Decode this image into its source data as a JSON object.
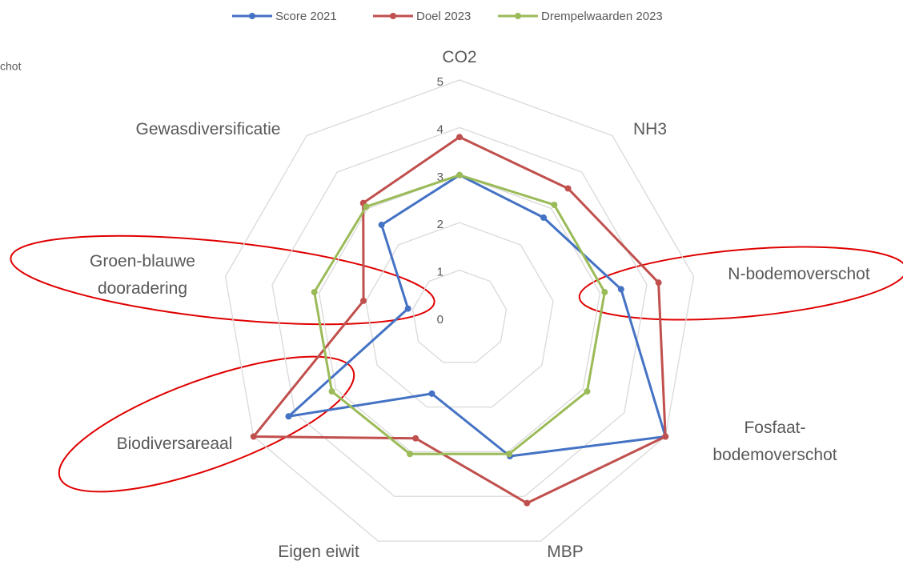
{
  "chart_data": {
    "type": "radar",
    "cropped_text": "chot",
    "categories": [
      "CO2",
      "NH3",
      "N-bodemoverschot",
      "Fosfaat-bodemoverschot",
      "MBP",
      "Eigen eiwit",
      "Biodiversareaal",
      "Groen-blauwe dooradering",
      "Gewasdiversificatie"
    ],
    "series": [
      {
        "name": "Score 2021",
        "color": "#4472c4",
        "values": [
          3.0,
          2.75,
          3.45,
          5.0,
          3.1,
          1.7,
          4.15,
          1.1,
          2.55
        ]
      },
      {
        "name": "Doel 2023",
        "color": "#c0504d",
        "values": [
          3.8,
          3.55,
          4.25,
          5.0,
          4.15,
          2.7,
          5.0,
          2.05,
          3.15
        ]
      },
      {
        "name": "Drempelwaarden 2023",
        "color": "#9bbb59",
        "values": [
          3.0,
          3.1,
          3.1,
          3.1,
          3.05,
          3.05,
          3.1,
          3.1,
          3.05
        ]
      }
    ],
    "ylim": [
      0,
      5
    ],
    "yticks": [
      0,
      1,
      2,
      3,
      4,
      5
    ],
    "grid": true,
    "legend": "top"
  }
}
